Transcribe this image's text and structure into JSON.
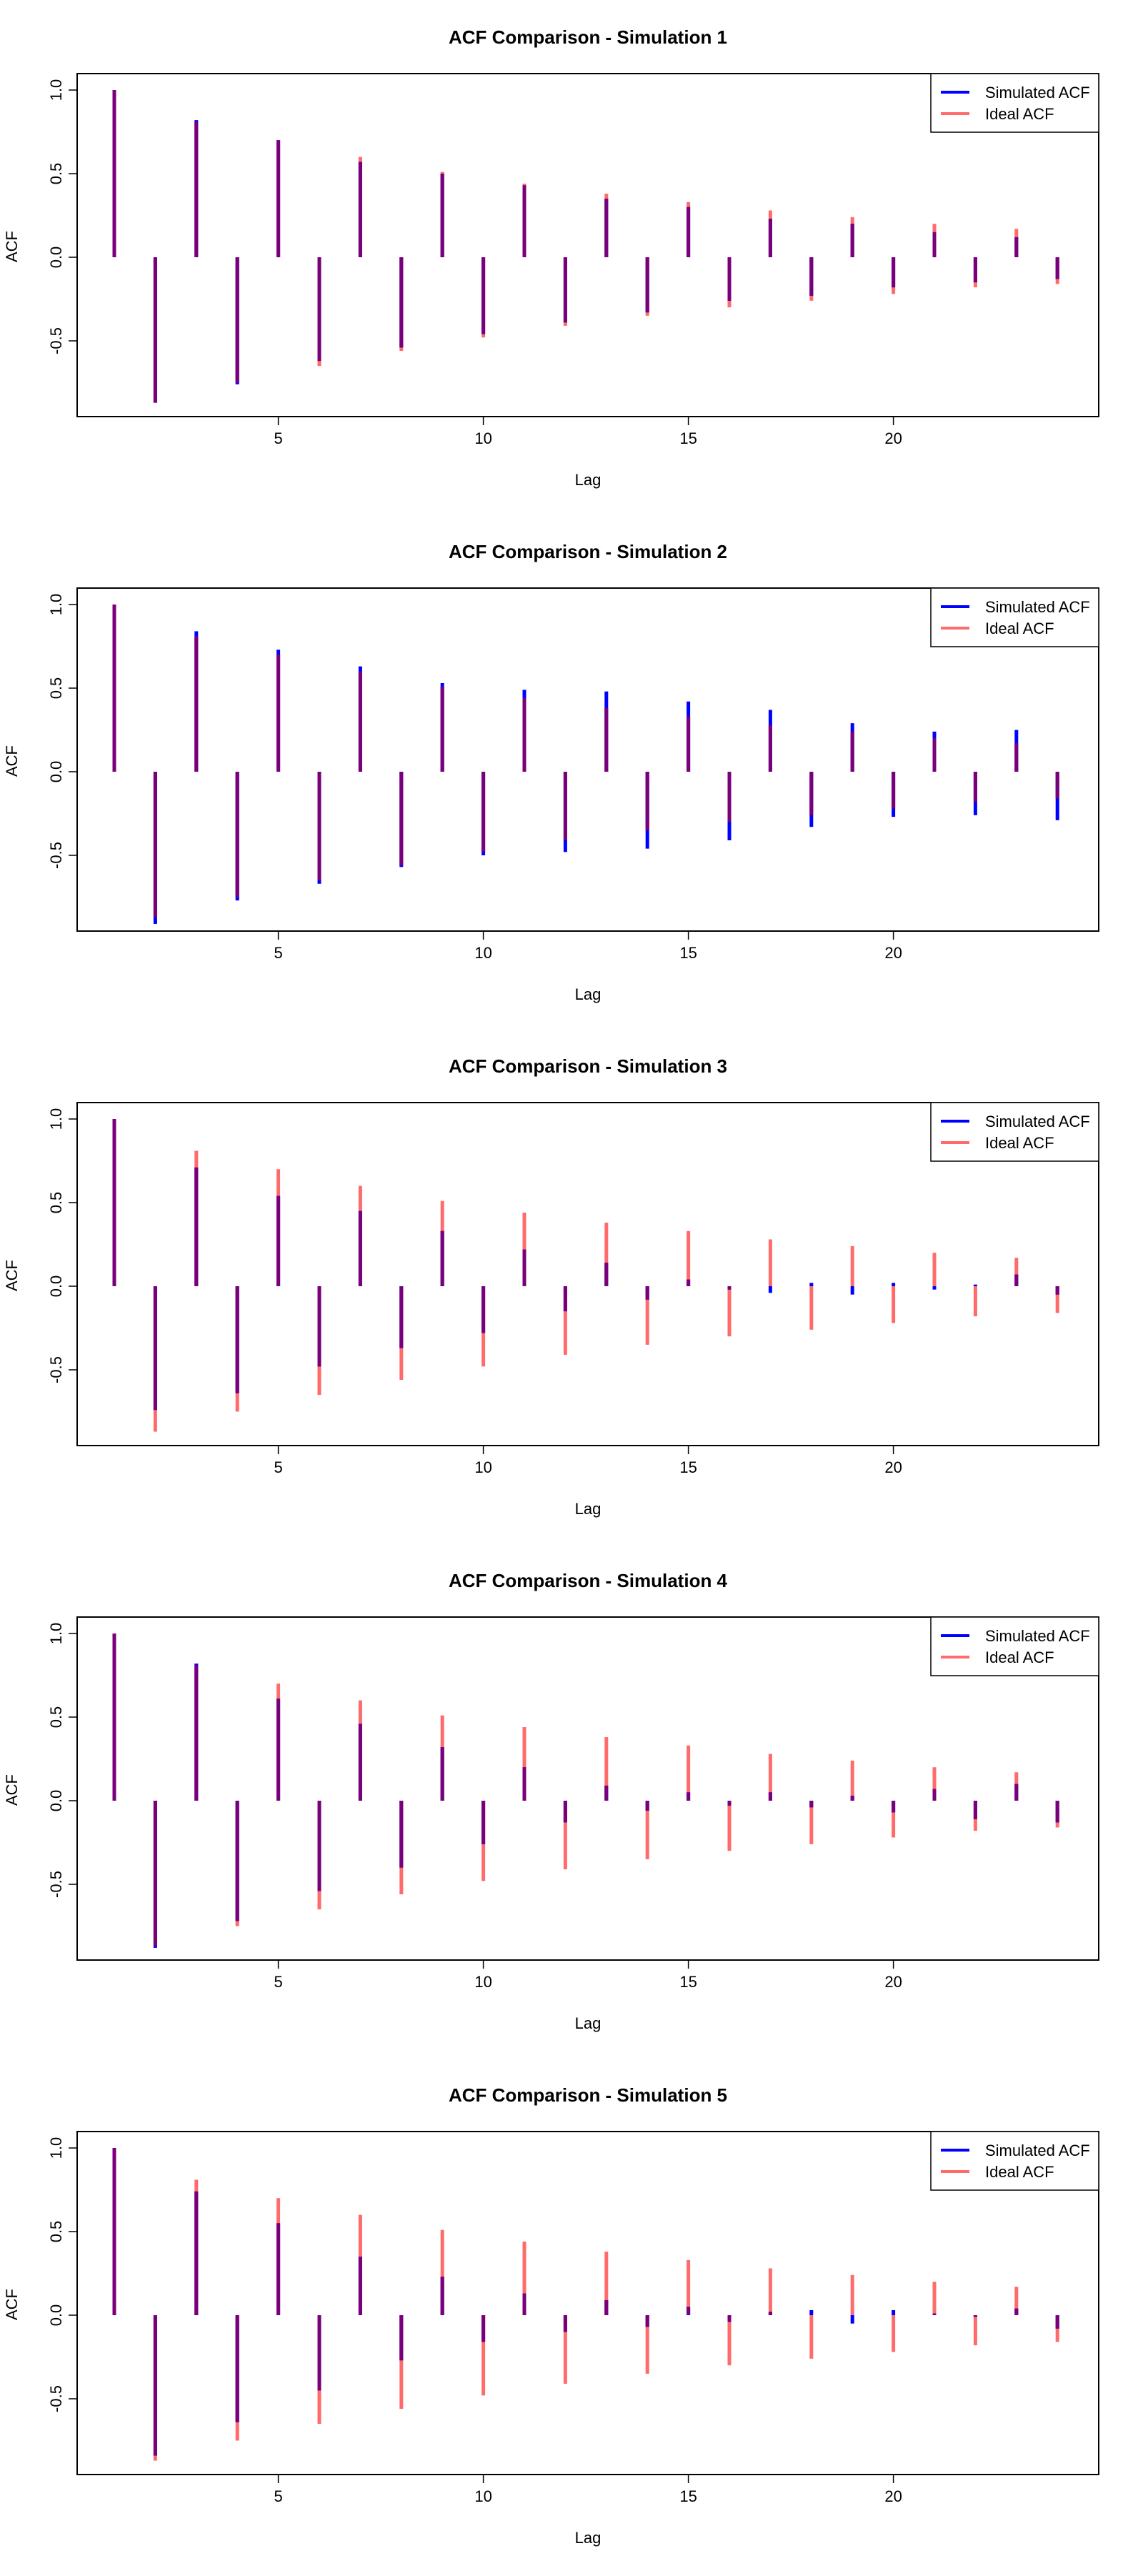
{
  "colors": {
    "simulated": "#0000ff",
    "ideal": "#ff6b6b",
    "overlap": "#7a007a",
    "axis": "#000000",
    "background": "#ffffff"
  },
  "chart_data": [
    {
      "type": "bar",
      "title": "ACF Comparison - Simulation 1",
      "xlabel": "Lag",
      "ylabel": "ACF",
      "xlim": [
        1,
        24
      ],
      "ylim": [
        -0.9,
        1.0
      ],
      "x_ticks": [
        "5",
        "10",
        "15",
        "20"
      ],
      "y_ticks": [
        "-0.5",
        "0.0",
        "0.5",
        "1.0"
      ],
      "legend_position": "top-right",
      "grid": false,
      "x": [
        1,
        2,
        3,
        4,
        5,
        6,
        7,
        8,
        9,
        10,
        11,
        12,
        13,
        14,
        15,
        16,
        17,
        18,
        19,
        20,
        21,
        22,
        23,
        24
      ],
      "series": [
        {
          "name": "Simulated ACF",
          "values": [
            1.0,
            -0.87,
            0.82,
            -0.76,
            0.7,
            -0.62,
            0.57,
            -0.54,
            0.5,
            -0.46,
            0.43,
            -0.39,
            0.35,
            -0.33,
            0.3,
            -0.26,
            0.23,
            -0.23,
            0.2,
            -0.18,
            0.15,
            -0.15,
            0.12,
            -0.13
          ]
        },
        {
          "name": "Ideal ACF",
          "values": [
            1.0,
            -0.87,
            0.81,
            -0.75,
            0.7,
            -0.65,
            0.6,
            -0.56,
            0.51,
            -0.48,
            0.44,
            -0.41,
            0.38,
            -0.35,
            0.33,
            -0.3,
            0.28,
            -0.26,
            0.24,
            -0.22,
            0.2,
            -0.18,
            0.17,
            -0.16
          ]
        }
      ]
    },
    {
      "type": "bar",
      "title": "ACF Comparison - Simulation 2",
      "xlabel": "Lag",
      "ylabel": "ACF",
      "xlim": [
        1,
        24
      ],
      "ylim": [
        -0.9,
        1.0
      ],
      "x_ticks": [
        "5",
        "10",
        "15",
        "20"
      ],
      "y_ticks": [
        "-0.5",
        "0.0",
        "0.5",
        "1.0"
      ],
      "legend_position": "top-right",
      "grid": false,
      "x": [
        1,
        2,
        3,
        4,
        5,
        6,
        7,
        8,
        9,
        10,
        11,
        12,
        13,
        14,
        15,
        16,
        17,
        18,
        19,
        20,
        21,
        22,
        23,
        24
      ],
      "series": [
        {
          "name": "Simulated ACF",
          "values": [
            1.0,
            -0.91,
            0.84,
            -0.77,
            0.73,
            -0.67,
            0.63,
            -0.57,
            0.53,
            -0.5,
            0.49,
            -0.48,
            0.48,
            -0.46,
            0.42,
            -0.41,
            0.37,
            -0.33,
            0.29,
            -0.27,
            0.24,
            -0.26,
            0.25,
            -0.29
          ]
        },
        {
          "name": "Ideal ACF",
          "values": [
            1.0,
            -0.87,
            0.81,
            -0.75,
            0.7,
            -0.65,
            0.6,
            -0.56,
            0.51,
            -0.48,
            0.44,
            -0.41,
            0.38,
            -0.35,
            0.33,
            -0.3,
            0.28,
            -0.26,
            0.24,
            -0.22,
            0.2,
            -0.18,
            0.17,
            -0.16
          ]
        }
      ]
    },
    {
      "type": "bar",
      "title": "ACF Comparison - Simulation 3",
      "xlabel": "Lag",
      "ylabel": "ACF",
      "xlim": [
        1,
        24
      ],
      "ylim": [
        -0.9,
        1.0
      ],
      "x_ticks": [
        "5",
        "10",
        "15",
        "20"
      ],
      "y_ticks": [
        "-0.5",
        "0.0",
        "0.5",
        "1.0"
      ],
      "legend_position": "top-right",
      "grid": false,
      "x": [
        1,
        2,
        3,
        4,
        5,
        6,
        7,
        8,
        9,
        10,
        11,
        12,
        13,
        14,
        15,
        16,
        17,
        18,
        19,
        20,
        21,
        22,
        23,
        24
      ],
      "series": [
        {
          "name": "Simulated ACF",
          "values": [
            1.0,
            -0.74,
            0.71,
            -0.64,
            0.54,
            -0.48,
            0.45,
            -0.37,
            0.33,
            -0.28,
            0.22,
            -0.15,
            0.14,
            -0.08,
            0.04,
            -0.02,
            -0.04,
            0.02,
            -0.05,
            0.02,
            -0.02,
            0.01,
            0.07,
            -0.05
          ]
        },
        {
          "name": "Ideal ACF",
          "values": [
            1.0,
            -0.87,
            0.81,
            -0.75,
            0.7,
            -0.65,
            0.6,
            -0.56,
            0.51,
            -0.48,
            0.44,
            -0.41,
            0.38,
            -0.35,
            0.33,
            -0.3,
            0.28,
            -0.26,
            0.24,
            -0.22,
            0.2,
            -0.18,
            0.17,
            -0.16
          ]
        }
      ]
    },
    {
      "type": "bar",
      "title": "ACF Comparison - Simulation 4",
      "xlabel": "Lag",
      "ylabel": "ACF",
      "xlim": [
        1,
        24
      ],
      "ylim": [
        -0.9,
        1.0
      ],
      "x_ticks": [
        "5",
        "10",
        "15",
        "20"
      ],
      "y_ticks": [
        "-0.5",
        "0.0",
        "0.5",
        "1.0"
      ],
      "legend_position": "top-right",
      "grid": false,
      "x": [
        1,
        2,
        3,
        4,
        5,
        6,
        7,
        8,
        9,
        10,
        11,
        12,
        13,
        14,
        15,
        16,
        17,
        18,
        19,
        20,
        21,
        22,
        23,
        24
      ],
      "series": [
        {
          "name": "Simulated ACF",
          "values": [
            1.0,
            -0.88,
            0.82,
            -0.72,
            0.61,
            -0.54,
            0.46,
            -0.4,
            0.32,
            -0.26,
            0.2,
            -0.13,
            0.09,
            -0.06,
            0.05,
            -0.03,
            0.05,
            -0.04,
            0.03,
            -0.07,
            0.07,
            -0.11,
            0.1,
            -0.13
          ]
        },
        {
          "name": "Ideal ACF",
          "values": [
            1.0,
            -0.87,
            0.81,
            -0.75,
            0.7,
            -0.65,
            0.6,
            -0.56,
            0.51,
            -0.48,
            0.44,
            -0.41,
            0.38,
            -0.35,
            0.33,
            -0.3,
            0.28,
            -0.26,
            0.24,
            -0.22,
            0.2,
            -0.18,
            0.17,
            -0.16
          ]
        }
      ]
    },
    {
      "type": "bar",
      "title": "ACF Comparison - Simulation 5",
      "xlabel": "Lag",
      "ylabel": "ACF",
      "xlim": [
        1,
        24
      ],
      "ylim": [
        -0.9,
        1.0
      ],
      "x_ticks": [
        "5",
        "10",
        "15",
        "20"
      ],
      "y_ticks": [
        "-0.5",
        "0.0",
        "0.5",
        "1.0"
      ],
      "legend_position": "top-right",
      "grid": false,
      "x": [
        1,
        2,
        3,
        4,
        5,
        6,
        7,
        8,
        9,
        10,
        11,
        12,
        13,
        14,
        15,
        16,
        17,
        18,
        19,
        20,
        21,
        22,
        23,
        24
      ],
      "series": [
        {
          "name": "Simulated ACF",
          "values": [
            1.0,
            -0.84,
            0.74,
            -0.64,
            0.55,
            -0.45,
            0.35,
            -0.27,
            0.23,
            -0.16,
            0.13,
            -0.1,
            0.09,
            -0.07,
            0.05,
            -0.04,
            0.02,
            0.03,
            -0.05,
            0.03,
            0.01,
            -0.01,
            0.04,
            -0.08
          ]
        },
        {
          "name": "Ideal ACF",
          "values": [
            1.0,
            -0.87,
            0.81,
            -0.75,
            0.7,
            -0.65,
            0.6,
            -0.56,
            0.51,
            -0.48,
            0.44,
            -0.41,
            0.38,
            -0.35,
            0.33,
            -0.3,
            0.28,
            -0.26,
            0.24,
            -0.22,
            0.2,
            -0.18,
            0.17,
            -0.16
          ]
        }
      ]
    }
  ]
}
